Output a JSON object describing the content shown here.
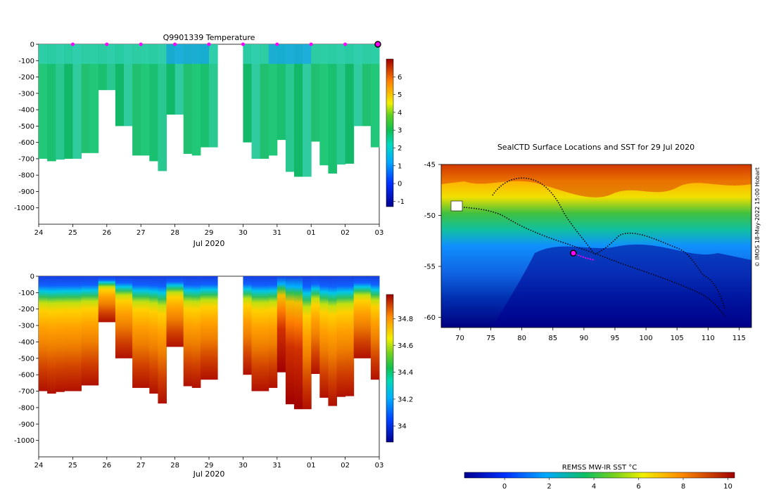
{
  "chart_data": [
    {
      "id": "temperature",
      "type": "heatmap",
      "title": "Q9901339  Temperature",
      "xlabel": "Jul 2020",
      "ylabel": "",
      "x_ticks": [
        "24",
        "25",
        "26",
        "27",
        "28",
        "29",
        "30",
        "31",
        "01",
        "02",
        "03"
      ],
      "ylim": [
        -1100,
        0
      ],
      "y_ticks": [
        0,
        -100,
        -200,
        -300,
        -400,
        -500,
        -600,
        -700,
        -800,
        -900,
        -1000
      ],
      "profile_days": [
        24.0,
        24.25,
        24.5,
        24.75,
        25.0,
        25.25,
        25.5,
        25.75,
        26.0,
        26.25,
        26.5,
        26.75,
        27.0,
        27.25,
        27.5,
        27.75,
        28.0,
        28.25,
        28.5,
        28.75,
        29.0,
        30.0,
        30.25,
        30.5,
        30.75,
        31.0,
        31.25,
        31.5,
        31.75,
        32.0,
        32.25,
        32.5,
        32.75,
        33.0,
        33.25,
        33.5,
        33.75
      ],
      "profile_max_depth": [
        -700,
        -715,
        -705,
        -700,
        -700,
        -665,
        -665,
        -280,
        -280,
        -500,
        -500,
        -680,
        -680,
        -715,
        -775,
        -430,
        -430,
        -670,
        -680,
        -630,
        -630,
        -600,
        -700,
        -700,
        -680,
        -585,
        -780,
        -810,
        -810,
        -595,
        -740,
        -790,
        -735,
        -730,
        -500,
        -500,
        -630
      ],
      "surface_markers_day": [
        25,
        26,
        27,
        28,
        29,
        30,
        31,
        32,
        33
      ],
      "last_position_day": 34,
      "colorbar_ticks": [
        6,
        5,
        4,
        3,
        2,
        1,
        0,
        -1
      ],
      "colorbar_range": [
        -1.3,
        7.0
      ]
    },
    {
      "id": "salinity",
      "type": "heatmap",
      "title": "",
      "xlabel": "Jul 2020",
      "x_ticks": [
        "24",
        "25",
        "26",
        "27",
        "28",
        "29",
        "30",
        "31",
        "01",
        "02",
        "03"
      ],
      "ylim": [
        -1100,
        0
      ],
      "y_ticks": [
        0,
        -100,
        -200,
        -300,
        -400,
        -500,
        -600,
        -700,
        -800,
        -900,
        -1000
      ],
      "colorbar_ticks": [
        34.8,
        34.6,
        34.4,
        34.2,
        34
      ],
      "colorbar_range": [
        33.88,
        34.98
      ]
    },
    {
      "id": "map",
      "type": "scatter",
      "title": "SealCTD Surface Locations and SST for 29 Jul 2020",
      "xlabel": "",
      "xlim": [
        67,
        117
      ],
      "ylim": [
        -61,
        -45
      ],
      "x_ticks": [
        70,
        75,
        80,
        85,
        90,
        95,
        100,
        105,
        110,
        115
      ],
      "y_ticks": [
        -45,
        -50,
        -55,
        -60
      ],
      "current_position": [
        88.3,
        -53.7
      ],
      "colorbar_label": "REMSS MW-IR SST °C",
      "colorbar_ticks": [
        0,
        2,
        4,
        6,
        8,
        10
      ],
      "colorbar_range": [
        -1.8,
        10.3
      ]
    }
  ],
  "credit": "© IMOS 18-May-2022 15:00 Hobart"
}
